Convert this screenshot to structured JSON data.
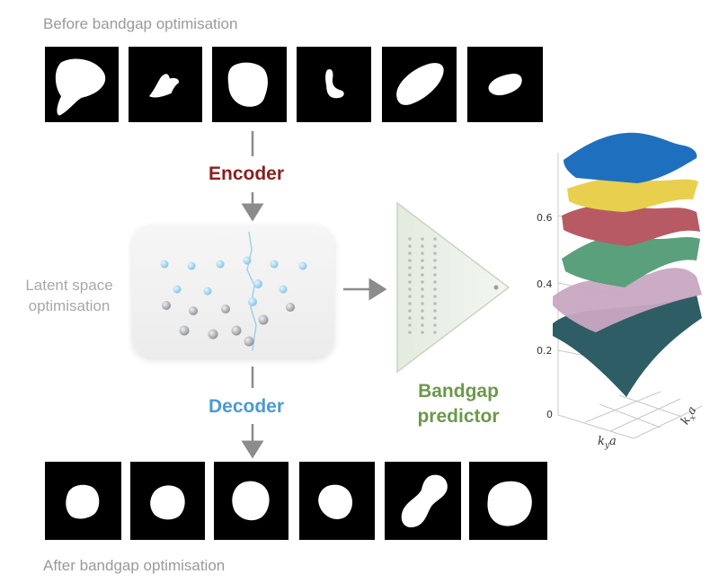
{
  "captions": {
    "before": "Before bandgap optimisation",
    "after": "After bandgap optimisation"
  },
  "labels": {
    "encoder": "Encoder",
    "decoder": "Decoder",
    "latent_line1": "Latent space",
    "latent_line2": "optimisation",
    "predictor_line1": "Bandgap",
    "predictor_line2": "predictor"
  },
  "plot": {
    "ticks": [
      "0.6",
      "0.4",
      "0.2",
      "0"
    ],
    "xlabel": "k",
    "xlabel_sub": "y",
    "xlabel_suffix": "a",
    "zlabel": "k",
    "zlabel_sub": "x",
    "zlabel_suffix": "a"
  },
  "colors": {
    "encoder": "#8b1f1f",
    "decoder": "#4a9ad8",
    "predictor": "#6a9a4a",
    "caption": "#9a9a9a",
    "surfaces": [
      "#1f6fbf",
      "#e9cf4e",
      "#b85a63",
      "#5aa07c",
      "#c9a6c2",
      "#2e5d66"
    ]
  }
}
